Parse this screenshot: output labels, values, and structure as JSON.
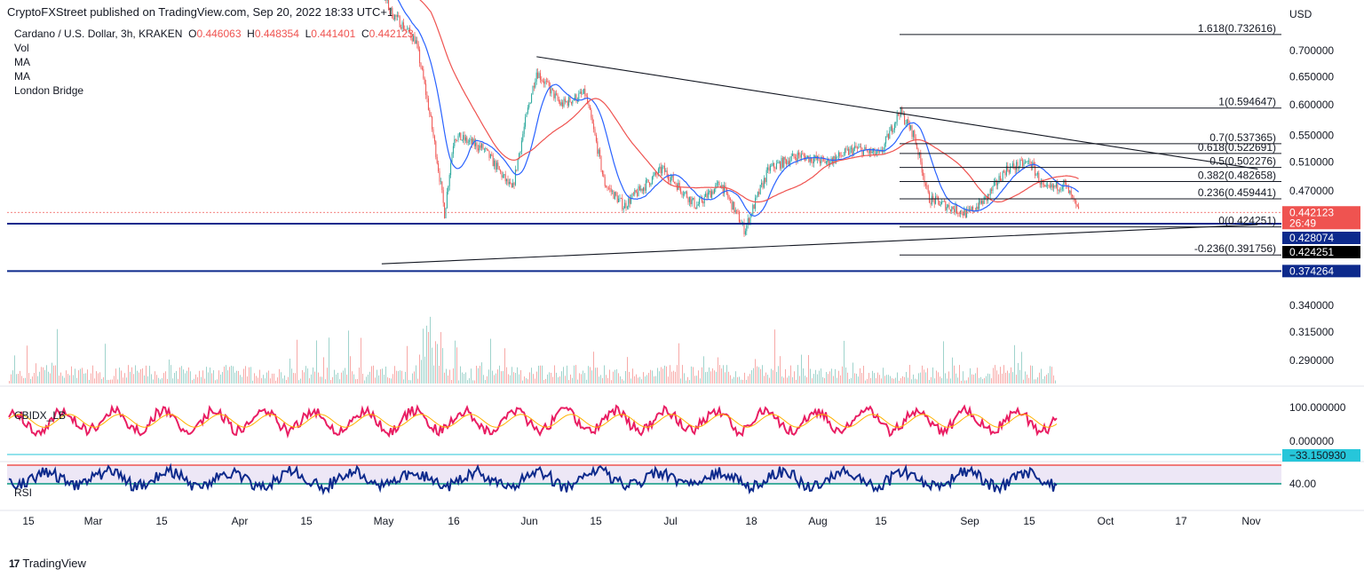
{
  "header": {
    "published": "CryptoFXStreet published on TradingView.com, Sep 20, 2022 18:33 UTC+1"
  },
  "legend": {
    "symbol": "Cardano / U.S. Dollar, 3h, KRAKEN",
    "o_label": "O",
    "o_value": "0.446063",
    "h_label": "H",
    "h_value": "0.448354",
    "l_label": "L",
    "l_value": "0.441401",
    "c_label": "C",
    "c_value": "0.442123",
    "studies": [
      "Vol",
      "MA",
      "MA",
      "London Bridge"
    ]
  },
  "indicators": {
    "cbidx_label": "CBIDX_LB",
    "rsi_label": "RSI"
  },
  "footer": {
    "brand": "TradingView",
    "logo": "17"
  },
  "colors": {
    "up": "#26a69a",
    "down": "#ef5350",
    "ma_fast": "#2962ff",
    "ma_slow": "#ef5350",
    "horizontal": "#0d2a8c",
    "cbidx": "#e91e63",
    "cbidx_signal": "#ffb300",
    "rsi": "#0d2a8c",
    "rsi_upper": "#ef5350",
    "rsi_lower": "#089981",
    "rsi_band": "#ede7f6"
  },
  "chart_data": {
    "type": "candlestick",
    "currency": "USD",
    "x_ticks": [
      "15",
      "Mar",
      "15",
      "Apr",
      "15",
      "May",
      "16",
      "Jun",
      "15",
      "Jul",
      "18",
      "Aug",
      "15",
      "Sep",
      "15",
      "Oct",
      "17",
      "Nov"
    ],
    "y_ticks": [
      "0.700000",
      "0.650000",
      "0.600000",
      "0.550000",
      "0.510000",
      "0.470000",
      "0.340000",
      "0.315000",
      "0.290000"
    ],
    "price_path": [
      {
        "date": "2022-04-24",
        "price": 0.95
      },
      {
        "date": "2022-05-01",
        "price": 0.78
      },
      {
        "date": "2022-05-06",
        "price": 0.72
      },
      {
        "date": "2022-05-09",
        "price": 0.58
      },
      {
        "date": "2022-05-12",
        "price": 0.44
      },
      {
        "date": "2022-05-14",
        "price": 0.55
      },
      {
        "date": "2022-05-20",
        "price": 0.53
      },
      {
        "date": "2022-05-26",
        "price": 0.47
      },
      {
        "date": "2022-05-31",
        "price": 0.66
      },
      {
        "date": "2022-06-05",
        "price": 0.6
      },
      {
        "date": "2022-06-10",
        "price": 0.62
      },
      {
        "date": "2022-06-14",
        "price": 0.48
      },
      {
        "date": "2022-06-18",
        "price": 0.45
      },
      {
        "date": "2022-06-26",
        "price": 0.5
      },
      {
        "date": "2022-07-03",
        "price": 0.45
      },
      {
        "date": "2022-07-08",
        "price": 0.48
      },
      {
        "date": "2022-07-13",
        "price": 0.42
      },
      {
        "date": "2022-07-18",
        "price": 0.5
      },
      {
        "date": "2022-07-24",
        "price": 0.52
      },
      {
        "date": "2022-07-30",
        "price": 0.51
      },
      {
        "date": "2022-08-05",
        "price": 0.53
      },
      {
        "date": "2022-08-10",
        "price": 0.52
      },
      {
        "date": "2022-08-14",
        "price": 0.59
      },
      {
        "date": "2022-08-17",
        "price": 0.55
      },
      {
        "date": "2022-08-20",
        "price": 0.46
      },
      {
        "date": "2022-08-28",
        "price": 0.44
      },
      {
        "date": "2022-09-01",
        "price": 0.46
      },
      {
        "date": "2022-09-05",
        "price": 0.5
      },
      {
        "date": "2022-09-10",
        "price": 0.51
      },
      {
        "date": "2022-09-13",
        "price": 0.47
      },
      {
        "date": "2022-09-17",
        "price": 0.48
      },
      {
        "date": "2022-09-20",
        "price": 0.442
      }
    ],
    "fib_levels": [
      {
        "label": "1.618(0.732616)",
        "price": 0.732616
      },
      {
        "label": "1(0.594647)",
        "price": 0.594647
      },
      {
        "label": "0.7(0.537365)",
        "price": 0.537365
      },
      {
        "label": "0.618(0.522691)",
        "price": 0.522691
      },
      {
        "label": "0.5(0.502276)",
        "price": 0.502276
      },
      {
        "label": "0.382(0.482658)",
        "price": 0.482658
      },
      {
        "label": "0.236(0.459441)",
        "price": 0.459441
      },
      {
        "label": "0(0.424251)",
        "price": 0.424251
      },
      {
        "label": "-0.236(0.391756)",
        "price": 0.391756
      }
    ],
    "horizontal_lines": [
      0.428074,
      0.374264
    ],
    "price_tags": [
      {
        "text": "0.442123",
        "sub": "26:49",
        "price": 0.442123,
        "color": "#ef5350"
      },
      {
        "text": "0.428074",
        "price": 0.428074,
        "color": "#0d2a8c"
      },
      {
        "text": "0.424251",
        "price": 0.424251,
        "color": "#000000"
      },
      {
        "text": "0.374264",
        "price": 0.374264,
        "color": "#0d2a8c"
      }
    ],
    "trendlines": [
      {
        "from": {
          "date": "2022-05-31",
          "price": 0.688
        },
        "to": {
          "date": "2022-10-27",
          "price": 0.5
        }
      },
      {
        "from": {
          "date": "2022-04-29",
          "price": 0.382
        },
        "to": {
          "date": "2022-10-27",
          "price": 0.427
        }
      }
    ],
    "cbidx": {
      "y_ticks": [
        "100.000000",
        "0.000000"
      ],
      "last_value": "−33.150930"
    },
    "rsi": {
      "y_ticks": [
        "40.00"
      ]
    }
  }
}
